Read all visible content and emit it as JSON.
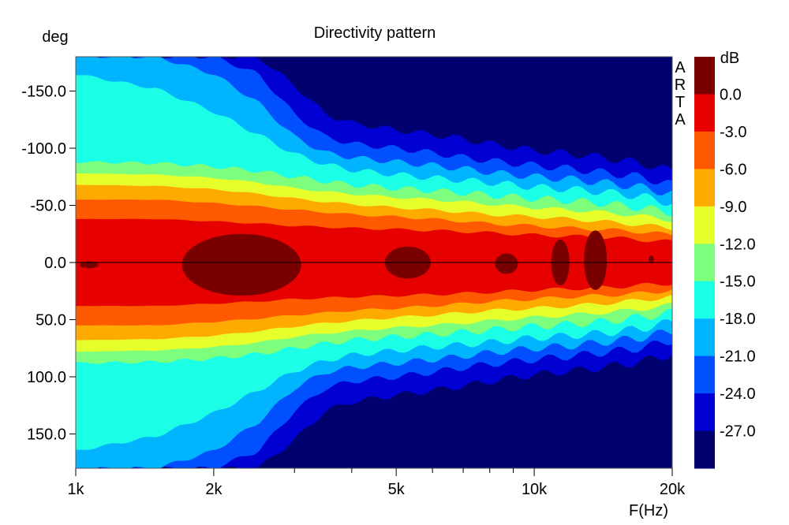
{
  "chart_data": {
    "type": "heatmap",
    "title": "Directivity pattern",
    "xlabel": "F(Hz)",
    "ylabel": "deg",
    "x_scale": "log",
    "xlim": [
      1000,
      20000
    ],
    "ylim": [
      -180,
      180
    ],
    "y_inverted": true,
    "x_ticks": [
      {
        "value": 1000,
        "label": "1k"
      },
      {
        "value": 2000,
        "label": "2k"
      },
      {
        "value": 5000,
        "label": "5k"
      },
      {
        "value": 10000,
        "label": "10k"
      },
      {
        "value": 20000,
        "label": "20k"
      }
    ],
    "x_minor_ticks": [
      3000,
      4000,
      6000,
      7000,
      8000,
      9000
    ],
    "y_ticks": [
      {
        "value": -150,
        "label": "-150.0"
      },
      {
        "value": -100,
        "label": "-100.0"
      },
      {
        "value": -50,
        "label": "-50.0"
      },
      {
        "value": 0,
        "label": "0.0"
      },
      {
        "value": 50,
        "label": "50.0"
      },
      {
        "value": 100,
        "label": "100.0"
      },
      {
        "value": 150,
        "label": "150.0"
      }
    ],
    "watermark": "ARTA",
    "colorbar": {
      "unit": "dB",
      "labels": [
        "0.0",
        "-3.0",
        "-6.0",
        "-9.0",
        "-12.0",
        "-15.0",
        "-18.0",
        "-21.0",
        "-24.0",
        "-27.0"
      ],
      "colors": [
        "#7a0000",
        "#e60000",
        "#ff5a00",
        "#ffaa00",
        "#e6ff2a",
        "#7dff7d",
        "#1affe6",
        "#00b4ff",
        "#0050ff",
        "#0000d2",
        "#00006e"
      ]
    },
    "contour_boundary_deg": {
      "frequencies": [
        1000,
        1500,
        2000,
        2500,
        3000,
        3500,
        4000,
        5000,
        6000,
        7000,
        8000,
        10000,
        12000,
        14000,
        17000,
        20000
      ],
      "-3dB": [
        38,
        38,
        36,
        34,
        32,
        31,
        30,
        29,
        28,
        27,
        26,
        24,
        23,
        22,
        20,
        18
      ],
      "-6dB": [
        55,
        55,
        52,
        49,
        46,
        44,
        42,
        40,
        38,
        36,
        34,
        32,
        30,
        29,
        27,
        24
      ],
      "-9dB": [
        68,
        67,
        64,
        60,
        56,
        53,
        51,
        48,
        46,
        44,
        42,
        40,
        38,
        36,
        33,
        30
      ],
      "-12dB": [
        78,
        77,
        74,
        70,
        65,
        62,
        60,
        57,
        55,
        53,
        51,
        48,
        46,
        44,
        41,
        37
      ],
      "-15dB": [
        88,
        87,
        84,
        80,
        75,
        71,
        68,
        65,
        63,
        61,
        59,
        56,
        54,
        52,
        48,
        44
      ],
      "-18dB": [
        165,
        152,
        132,
        112,
        95,
        86,
        81,
        77,
        74,
        72,
        70,
        66,
        64,
        62,
        58,
        52
      ],
      "-21dB": [
        180,
        180,
        165,
        140,
        110,
        96,
        92,
        88,
        85,
        82,
        79,
        75,
        73,
        70,
        66,
        60
      ],
      "-24dB": [
        180,
        180,
        180,
        165,
        130,
        110,
        104,
        100,
        96,
        92,
        89,
        85,
        82,
        79,
        75,
        68
      ],
      "-27dB": [
        180,
        180,
        180,
        180,
        155,
        130,
        122,
        116,
        112,
        108,
        104,
        98,
        95,
        92,
        87,
        80
      ]
    },
    "peak_regions": [
      {
        "f_center": 1070,
        "deg_center": 2,
        "f_halfspan_log": 0.02,
        "deg_halfspan": 3
      },
      {
        "f_center": 2300,
        "deg_center": 2,
        "f_halfspan_log": 0.13,
        "deg_halfspan": 27
      },
      {
        "f_center": 5300,
        "deg_center": 0,
        "f_halfspan_log": 0.05,
        "deg_halfspan": 14
      },
      {
        "f_center": 8700,
        "deg_center": 1,
        "f_halfspan_log": 0.025,
        "deg_halfspan": 9
      },
      {
        "f_center": 11400,
        "deg_center": 0,
        "f_halfspan_log": 0.02,
        "deg_halfspan": 20
      },
      {
        "f_center": 13600,
        "deg_center": -2,
        "f_halfspan_log": 0.025,
        "deg_halfspan": 26
      },
      {
        "f_center": 18000,
        "deg_center": -3,
        "f_halfspan_log": 0.006,
        "deg_halfspan": 3
      }
    ]
  }
}
